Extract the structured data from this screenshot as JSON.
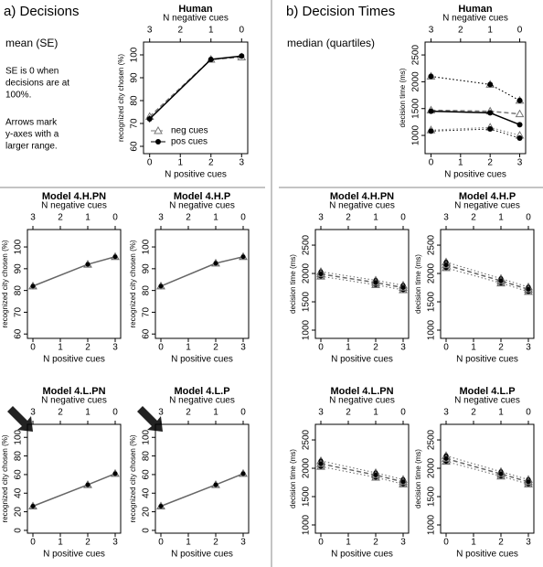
{
  "panels": {
    "left_heading": "a) Decisions",
    "left_subheading": "mean (SE)",
    "left_note_1": [
      "SE is 0 when",
      "decisions are at",
      "100%."
    ],
    "left_note_2": [
      "Arrows mark",
      "y-axes with a",
      "larger range."
    ],
    "right_heading": "b) Decision Times",
    "right_subheading": "median (quartiles)"
  },
  "chart_data": [
    {
      "type": "line",
      "title": "Human",
      "x_label": "N positive cues",
      "x2_label": "N negative cues",
      "y_label": "recognized city chosen (%)",
      "x": [
        0,
        2,
        3
      ],
      "xlim": [
        -0.2,
        3.2
      ],
      "xticks": [
        0,
        1,
        2,
        3
      ],
      "x2ticks": [
        {
          "value": 0,
          "label": "3"
        },
        {
          "value": 1,
          "label": "2"
        },
        {
          "value": 2,
          "label": "1"
        },
        {
          "value": 3,
          "label": "0"
        }
      ],
      "ylim": [
        56.8,
        105.6
      ],
      "yticks": [
        60,
        70,
        80,
        90,
        100
      ],
      "legend": "lower right",
      "series": [
        {
          "name": "neg cues",
          "color": "#777777",
          "marker": "triangle",
          "line_style": "dashed",
          "values": [
            73,
            98,
            99
          ],
          "errors": [
            1.5,
            0.5,
            0.3
          ]
        },
        {
          "name": "pos cues",
          "color": "#000000",
          "marker": "circle",
          "line_style": "solid",
          "values": [
            72,
            98,
            99.5
          ],
          "errors": [
            1.5,
            0.5,
            0.3
          ]
        }
      ]
    },
    {
      "type": "quartile",
      "title": "Human",
      "x_label": "N positive cues",
      "x2_label": "N negative cues",
      "y_label": "decision time (ms)",
      "x": [
        0,
        2,
        3
      ],
      "xlim": [
        -0.2,
        3.2
      ],
      "xticks": [
        0,
        1,
        2,
        3
      ],
      "x2ticks": [
        {
          "value": 0,
          "label": "3"
        },
        {
          "value": 1,
          "label": "2"
        },
        {
          "value": 2,
          "label": "1"
        },
        {
          "value": 3,
          "label": "0"
        }
      ],
      "ylim": [
        660,
        2740
      ],
      "yticks": [
        1000,
        1500,
        2000,
        2500
      ],
      "series": [
        {
          "color": "#777777",
          "marker": "triangle",
          "line_style": "dashed",
          "values": [
            1470,
            1450,
            1400
          ],
          "lower": [
            1100,
            1150,
            1000
          ],
          "upper": [
            2100,
            1950,
            1650
          ]
        },
        {
          "color": "#000000",
          "marker": "circle",
          "line_style": "solid",
          "values": [
            1450,
            1420,
            1200
          ],
          "lower": [
            1080,
            1120,
            950
          ],
          "upper": [
            2100,
            1950,
            1650
          ]
        }
      ]
    },
    {
      "type": "line",
      "title": "Model 4.H.PN",
      "x_label": "N positive cues",
      "x2_label": "N negative cues",
      "y_label": "recognized city chosen (%)",
      "x": [
        0,
        2,
        3
      ],
      "xlim": [
        -0.2,
        3.2
      ],
      "xticks": [
        0,
        1,
        2,
        3
      ],
      "x2ticks": [
        {
          "value": 0,
          "label": "3"
        },
        {
          "value": 1,
          "label": "2"
        },
        {
          "value": 2,
          "label": "1"
        },
        {
          "value": 3,
          "label": "0"
        }
      ],
      "ylim": [
        58,
        108
      ],
      "yticks": [
        60,
        70,
        80,
        90,
        100
      ],
      "series": [
        {
          "color": "#666666",
          "marker": "both",
          "line_style": "solid",
          "values": [
            82,
            92,
            95.5
          ],
          "errors": [
            1.5,
            1.2,
            1
          ]
        }
      ]
    },
    {
      "type": "line",
      "title": "Model 4.H.P",
      "x_label": "N positive cues",
      "x2_label": "N negative cues",
      "y_label": "recognized city chosen (%)",
      "x": [
        0,
        2,
        3
      ],
      "xlim": [
        -0.2,
        3.2
      ],
      "xticks": [
        0,
        1,
        2,
        3
      ],
      "x2ticks": [
        {
          "value": 0,
          "label": "3"
        },
        {
          "value": 1,
          "label": "2"
        },
        {
          "value": 2,
          "label": "1"
        },
        {
          "value": 3,
          "label": "0"
        }
      ],
      "ylim": [
        58,
        108
      ],
      "yticks": [
        60,
        70,
        80,
        90,
        100
      ],
      "series": [
        {
          "color": "#666666",
          "marker": "both",
          "line_style": "solid",
          "values": [
            82,
            92.5,
            95.5
          ],
          "errors": [
            1.5,
            1.2,
            1
          ]
        }
      ]
    },
    {
      "type": "quartile",
      "title": "Model 4.H.PN",
      "x_label": "N positive cues",
      "x2_label": "N negative cues",
      "y_label": "decision time (ms)",
      "x": [
        0,
        2,
        3
      ],
      "xlim": [
        -0.2,
        3.2
      ],
      "xticks": [
        0,
        1,
        2,
        3
      ],
      "x2ticks": [
        {
          "value": 0,
          "label": "3"
        },
        {
          "value": 1,
          "label": "2"
        },
        {
          "value": 2,
          "label": "1"
        },
        {
          "value": 3,
          "label": "0"
        }
      ],
      "ylim": [
        855,
        2775
      ],
      "yticks": [
        1000,
        1500,
        2000,
        2500
      ],
      "series": [
        {
          "color": "#666666",
          "marker": "both",
          "line_style": "dashed",
          "values": [
            1990,
            1840,
            1750
          ],
          "lower": [
            1950,
            1800,
            1710
          ],
          "upper": [
            2030,
            1880,
            1790
          ]
        }
      ]
    },
    {
      "type": "quartile",
      "title": "Model 4.H.P",
      "x_label": "N positive cues",
      "x2_label": "N negative cues",
      "y_label": "decision time (ms)",
      "x": [
        0,
        2,
        3
      ],
      "xlim": [
        -0.2,
        3.2
      ],
      "xticks": [
        0,
        1,
        2,
        3
      ],
      "x2ticks": [
        {
          "value": 0,
          "label": "3"
        },
        {
          "value": 1,
          "label": "2"
        },
        {
          "value": 2,
          "label": "1"
        },
        {
          "value": 3,
          "label": "0"
        }
      ],
      "ylim": [
        855,
        2775
      ],
      "yticks": [
        1000,
        1500,
        2000,
        2500
      ],
      "series": [
        {
          "color": "#666666",
          "marker": "both",
          "line_style": "dashed",
          "values": [
            2150,
            1870,
            1720
          ],
          "lower": [
            2100,
            1830,
            1680
          ],
          "upper": [
            2200,
            1910,
            1760
          ]
        }
      ]
    },
    {
      "type": "line",
      "title": "Model 4.L.PN",
      "x_label": "N positive cues",
      "x2_label": "N negative cues",
      "y_label": "recognized city chosen (%)",
      "x": [
        0,
        2,
        3
      ],
      "xlim": [
        -0.2,
        3.2
      ],
      "xticks": [
        0,
        1,
        2,
        3
      ],
      "x2ticks": [
        {
          "value": 0,
          "label": "3"
        },
        {
          "value": 1,
          "label": "2"
        },
        {
          "value": 2,
          "label": "1"
        },
        {
          "value": 3,
          "label": "0"
        }
      ],
      "ylim": [
        -3,
        114
      ],
      "yticks": [
        0,
        20,
        40,
        60,
        80,
        100
      ],
      "series": [
        {
          "color": "#666666",
          "marker": "both",
          "line_style": "solid",
          "values": [
            26,
            49,
            61
          ],
          "errors": [
            2,
            2,
            2
          ]
        }
      ]
    },
    {
      "type": "line",
      "title": "Model 4.L.P",
      "x_label": "N positive cues",
      "x2_label": "N negative cues",
      "y_label": "recognized city chosen (%)",
      "x": [
        0,
        2,
        3
      ],
      "xlim": [
        -0.2,
        3.2
      ],
      "xticks": [
        0,
        1,
        2,
        3
      ],
      "x2ticks": [
        {
          "value": 0,
          "label": "3"
        },
        {
          "value": 1,
          "label": "2"
        },
        {
          "value": 2,
          "label": "1"
        },
        {
          "value": 3,
          "label": "0"
        }
      ],
      "ylim": [
        -3,
        114
      ],
      "yticks": [
        0,
        20,
        40,
        60,
        80,
        100
      ],
      "series": [
        {
          "color": "#666666",
          "marker": "both",
          "line_style": "solid",
          "values": [
            26,
            49,
            61
          ],
          "errors": [
            2,
            2,
            2
          ]
        }
      ]
    },
    {
      "type": "quartile",
      "title": "Model 4.L.PN",
      "x_label": "N positive cues",
      "x2_label": "N negative cues",
      "y_label": "decision time (ms)",
      "x": [
        0,
        2,
        3
      ],
      "xlim": [
        -0.2,
        3.2
      ],
      "xticks": [
        0,
        1,
        2,
        3
      ],
      "x2ticks": [
        {
          "value": 0,
          "label": "3"
        },
        {
          "value": 1,
          "label": "2"
        },
        {
          "value": 2,
          "label": "1"
        },
        {
          "value": 3,
          "label": "0"
        }
      ],
      "ylim": [
        855,
        2775
      ],
      "yticks": [
        1000,
        1500,
        2000,
        2500
      ],
      "series": [
        {
          "color": "#666666",
          "marker": "both",
          "line_style": "dashed",
          "values": [
            2080,
            1880,
            1760
          ],
          "lower": [
            2030,
            1840,
            1720
          ],
          "upper": [
            2130,
            1920,
            1800
          ]
        }
      ]
    },
    {
      "type": "quartile",
      "title": "Model 4.L.P",
      "x_label": "N positive cues",
      "x2_label": "N negative cues",
      "y_label": "decision time (ms)",
      "x": [
        0,
        2,
        3
      ],
      "xlim": [
        -0.2,
        3.2
      ],
      "xticks": [
        0,
        1,
        2,
        3
      ],
      "x2ticks": [
        {
          "value": 0,
          "label": "3"
        },
        {
          "value": 1,
          "label": "2"
        },
        {
          "value": 2,
          "label": "1"
        },
        {
          "value": 3,
          "label": "0"
        }
      ],
      "ylim": [
        855,
        2775
      ],
      "yticks": [
        1000,
        1500,
        2000,
        2500
      ],
      "series": [
        {
          "color": "#666666",
          "marker": "both",
          "line_style": "dashed",
          "values": [
            2170,
            1900,
            1760
          ],
          "lower": [
            2120,
            1860,
            1720
          ],
          "upper": [
            2220,
            1940,
            1800
          ]
        }
      ]
    }
  ]
}
